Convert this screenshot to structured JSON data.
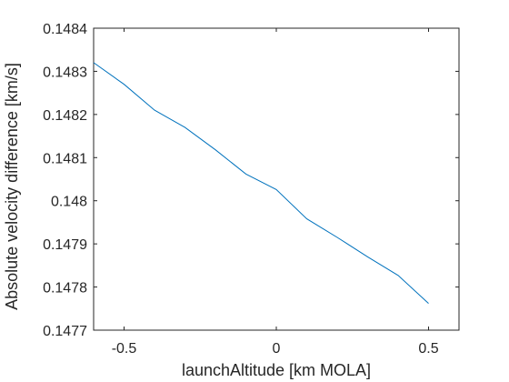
{
  "chart_data": {
    "type": "line",
    "title": "",
    "xlabel": "launchAltitude [km MOLA]",
    "ylabel": "Absolute velocity difference [km/s]",
    "xlim": [
      -0.6,
      0.6
    ],
    "ylim": [
      0.1477,
      0.1484
    ],
    "xticks": [
      -0.5,
      0,
      0.5
    ],
    "xtick_labels": [
      "-0.5",
      "0",
      "0.5"
    ],
    "yticks": [
      0.1477,
      0.1478,
      0.1479,
      0.148,
      0.1481,
      0.1482,
      0.1483,
      0.1484
    ],
    "ytick_labels": [
      "0.1477",
      "0.1478",
      "0.1479",
      "0.148",
      "0.1481",
      "0.1482",
      "0.1483",
      "0.1484"
    ],
    "grid": false,
    "series": [
      {
        "color": "#0072BD",
        "x": [
          -0.6,
          -0.5,
          -0.4,
          -0.3,
          -0.2,
          -0.1,
          0,
          0.1,
          0.2,
          0.3,
          0.4,
          0.5
        ],
        "y": [
          0.14832,
          0.14827,
          0.14821,
          0.14817,
          0.148118,
          0.148062,
          0.148026,
          0.147958,
          0.147915,
          0.14787,
          0.147827,
          0.147762
        ]
      }
    ]
  }
}
